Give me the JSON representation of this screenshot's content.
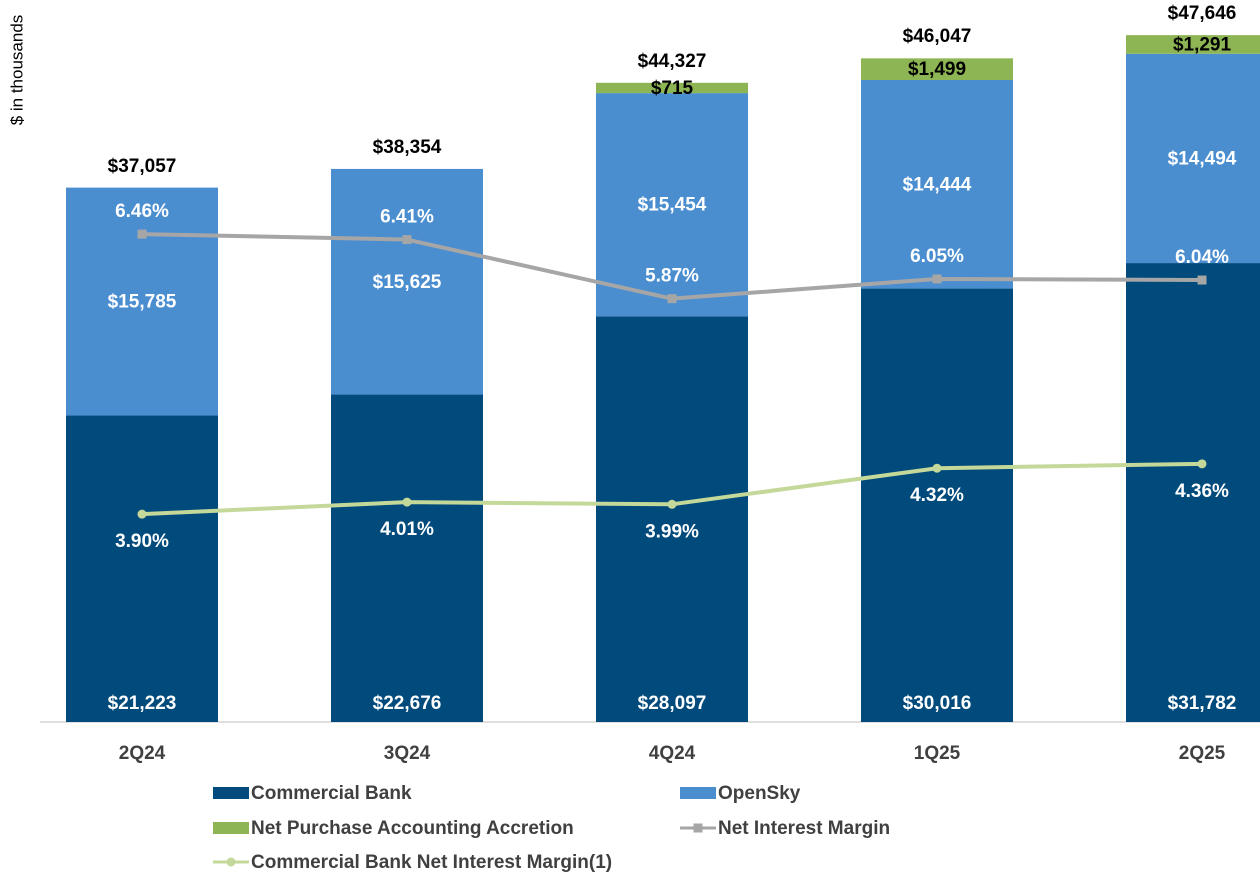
{
  "chart_data": {
    "type": "bar",
    "y_label": "$ in thousands",
    "categories": [
      "2Q24",
      "3Q24",
      "4Q24",
      "1Q25",
      "2Q25"
    ],
    "ylim": [
      0,
      50000
    ],
    "y2lim": [
      2.0,
      8.6
    ],
    "series": [
      {
        "name": "Commercial Bank",
        "color": "#004a7c",
        "type": "bar",
        "values": [
          21223,
          22676,
          28097,
          30016,
          31782
        ],
        "value_labels": [
          "$21,223",
          "$22,676",
          "$28,097",
          "$30,016",
          "$31,782"
        ],
        "label_color": "#ffffff"
      },
      {
        "name": "OpenSky",
        "color": "#4a8ed0",
        "type": "bar",
        "values": [
          15785,
          15625,
          15454,
          14444,
          14494
        ],
        "value_labels": [
          "$15,785",
          "$15,625",
          "$15,454",
          "$14,444",
          "$14,494"
        ],
        "label_color": "#ffffff"
      },
      {
        "name": "Net Purchase Accounting Accretion",
        "color": "#8db553",
        "type": "bar",
        "values": [
          null,
          null,
          715,
          1499,
          1291
        ],
        "value_labels": [
          null,
          null,
          "$715",
          "$1,499",
          "$1,291"
        ],
        "label_color": "#000000"
      },
      {
        "name": "Net Interest Margin",
        "color": "#a6a6a6",
        "type": "line",
        "axis": "y2",
        "marker": "square",
        "values": [
          6.46,
          6.41,
          5.87,
          6.05,
          6.04
        ],
        "value_labels": [
          "6.46%",
          "6.41%",
          "5.87%",
          "6.05%",
          "6.04%"
        ],
        "label_color": "#ffffff",
        "label_side": "above"
      },
      {
        "name": "Commercial Bank Net Interest Margin(1)",
        "color": "#c4d89a",
        "type": "line",
        "axis": "y2",
        "marker": "circle",
        "values": [
          3.9,
          4.01,
          3.99,
          4.32,
          4.36
        ],
        "value_labels": [
          "3.90%",
          "4.01%",
          "3.99%",
          "4.32%",
          "4.36%"
        ],
        "label_color": "#ffffff",
        "label_side": "below"
      }
    ],
    "totals": {
      "values": [
        37057,
        38354,
        44327,
        46047,
        47646
      ],
      "value_labels": [
        "$37,057",
        "$38,354",
        "$44,327",
        "$46,047",
        "$47,646"
      ]
    }
  }
}
